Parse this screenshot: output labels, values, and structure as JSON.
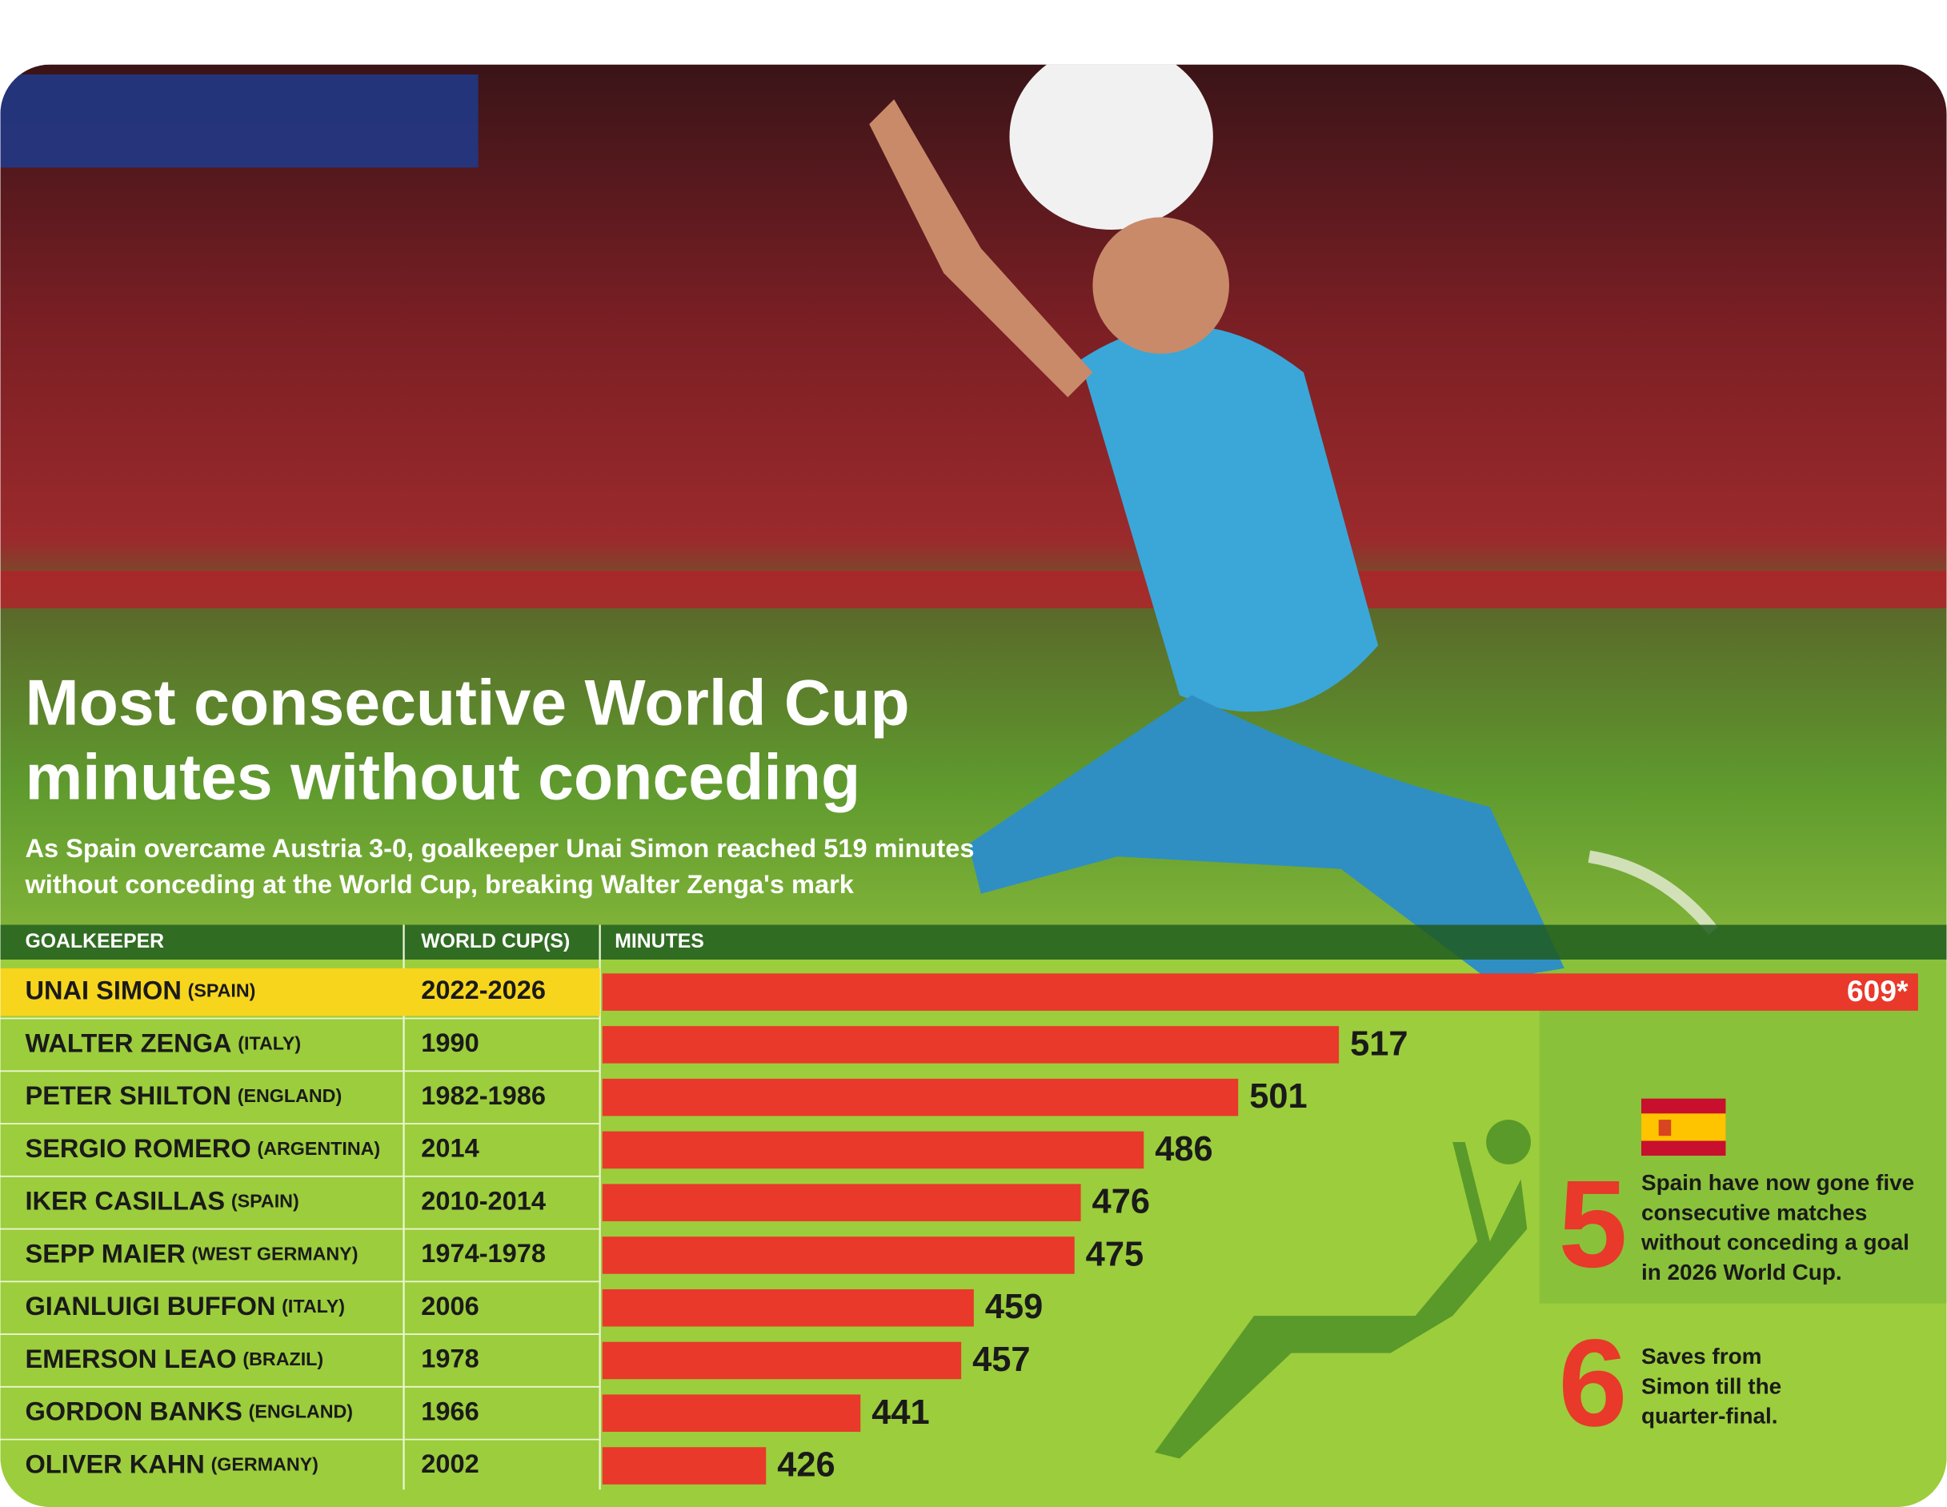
{
  "chart_data": {
    "type": "bar",
    "orientation": "horizontal",
    "title": [
      "Most consecutive World Cup",
      "minutes without conceding"
    ],
    "subtitle": [
      "As Spain overcame Austria 3-0, goalkeeper Unai Simon reached 519 minutes",
      "without conceding at the World Cup, breaking Walter Zenga's mark"
    ],
    "columns": [
      "GOALKEEPER",
      "WORLD CUP(S)",
      "MINUTES"
    ],
    "categories": [
      "UNAI SIMON",
      "WALTER ZENGA",
      "PETER SHILTON",
      "SERGIO ROMERO",
      "IKER CASILLAS",
      "SEPP MAIER",
      "GIANLUIGI BUFFON",
      "EMERSON LEAO",
      "GORDON BANKS",
      "OLIVER KAHN"
    ],
    "countries": [
      "(SPAIN)",
      "(ITALY)",
      "(ENGLAND)",
      "(ARGENTINA)",
      "(SPAIN)",
      "(WEST GERMANY)",
      "(ITALY)",
      "(BRAZIL)",
      "(ENGLAND)",
      "(GERMANY)"
    ],
    "world_cups": [
      "2022-2026",
      "1990",
      "1982-1986",
      "2014",
      "2010-2014",
      "1974-1978",
      "2006",
      "1978",
      "1966",
      "2002"
    ],
    "values": [
      609,
      517,
      501,
      486,
      476,
      475,
      459,
      457,
      441,
      426
    ],
    "value_labels": [
      "609*",
      "517",
      "501",
      "486",
      "476",
      "475",
      "459",
      "457",
      "441",
      "426"
    ],
    "color": "#e8392a",
    "highlight_color": "#f7d51d",
    "xlim": [
      400,
      609
    ],
    "notes": [
      {
        "number": "5",
        "lines": [
          "Spain have now gone five",
          "consecutive matches",
          "without conceding a goal",
          "in 2026 World Cup."
        ]
      },
      {
        "number": "6",
        "lines": [
          "Saves from",
          "Simon till the",
          "quarter-final."
        ]
      }
    ]
  }
}
